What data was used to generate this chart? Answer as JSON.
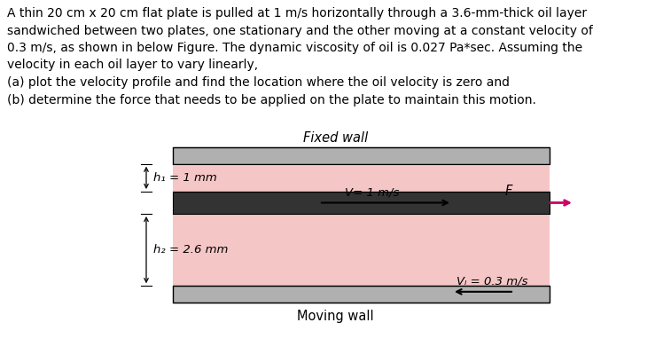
{
  "text_lines": [
    "A thin 20 cm x 20 cm flat plate is pulled at 1 m/s horizontally through a 3.6-mm-thick oil layer",
    "sandwiched between two plates, one stationary and the other moving at a constant velocity of",
    "0.3 m/s, as shown in below Figure. The dynamic viscosity of oil is 0.027 Pa*sec. Assuming the",
    "velocity in each oil layer to vary linearly,",
    "(a) plot the velocity profile and find the location where the oil velocity is zero and",
    "(b) determine the force that needs to be applied on the plate to maintain this motion."
  ],
  "fig_title": "Fixed wall",
  "fig_bottom_label": "Moving wall",
  "h1_label": "h₁ = 1 mm",
  "h2_label": "h₂ = 2.6 mm",
  "V_label": "V= 1 m/s",
  "F_label": "F",
  "Vw_label": "Vₗ = 0.3 m/s",
  "plate_color": "#f5c6c6",
  "wall_color": "#b0b0b0",
  "middle_plate_color": "#333333",
  "arrow_color_F": "#cc0066",
  "bg_color": "#ffffff",
  "text_color": "#000000",
  "font_size_text": 10.0,
  "font_size_labels": 9.5,
  "font_size_title": 10.5
}
